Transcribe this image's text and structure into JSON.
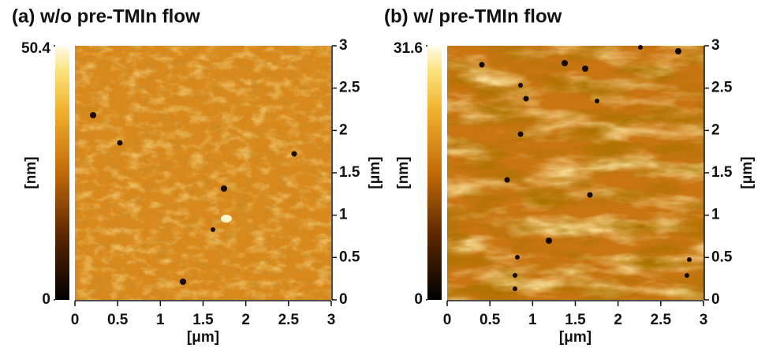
{
  "chart_data": [
    {
      "type": "afm-image",
      "title": "(a) w/o pre-TMIn flow",
      "colorbar_label": "[nm]",
      "clim": [
        0,
        50.4
      ],
      "cticks": [
        0,
        50.4
      ],
      "xlabel": "[μm]",
      "ylabel": "[μm]",
      "xlim": [
        0,
        3
      ],
      "xticks": [
        0,
        0.5,
        1,
        1.5,
        2,
        2.5,
        3
      ],
      "ylim": [
        0,
        3
      ],
      "yticks": [
        0,
        0.5,
        1,
        1.5,
        2,
        2.5,
        3
      ]
    },
    {
      "type": "afm-image",
      "title": "(b) w/ pre-TMIn flow",
      "colorbar_label": "[nm]",
      "clim": [
        0,
        31.6
      ],
      "cticks": [
        0,
        31.6
      ],
      "xlabel": "[μm]",
      "ylabel": "[μm]",
      "xlim": [
        0,
        3
      ],
      "xticks": [
        0,
        0.5,
        1,
        1.5,
        2,
        2.5,
        3
      ],
      "ylim": [
        0,
        3
      ],
      "yticks": [
        0,
        0.5,
        1,
        1.5,
        2,
        2.5,
        3
      ]
    }
  ]
}
